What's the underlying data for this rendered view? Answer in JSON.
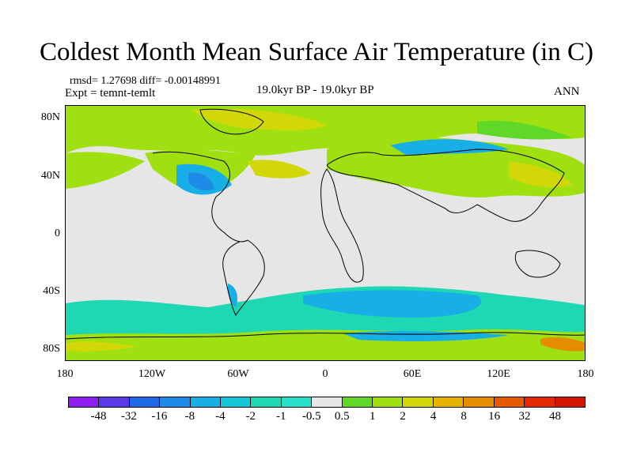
{
  "title": "Coldest Month Mean Surface Air Temperature (in C)",
  "stats": "rmsd= 1.27698 diff= -0.00148991",
  "expt": "Expt = temnt-temlt",
  "period": "19.0kyr BP - 19.0kyr BP",
  "season": "ANN",
  "axes": {
    "y_ticks": [
      "80N",
      "40N",
      "0",
      "40S",
      "80S"
    ],
    "x_ticks": [
      "180",
      "120W",
      "60W",
      "0",
      "60E",
      "120E",
      "180"
    ]
  },
  "colorbar": {
    "labels": [
      "-48",
      "-32",
      "-16",
      "-8",
      "-4",
      "-2",
      "-1",
      "-0.5",
      "0.5",
      "1",
      "2",
      "4",
      "8",
      "16",
      "32",
      "48"
    ],
    "colors": [
      "#8c1eee",
      "#5a3ae6",
      "#1e6ae6",
      "#1e8ce6",
      "#18aee6",
      "#14c8d8",
      "#1ed8b4",
      "#28e0c8",
      "#e6e6e6",
      "#60d828",
      "#a0e010",
      "#d2d808",
      "#e6b400",
      "#e68c00",
      "#e65a00",
      "#e62800",
      "#d21400"
    ]
  }
}
